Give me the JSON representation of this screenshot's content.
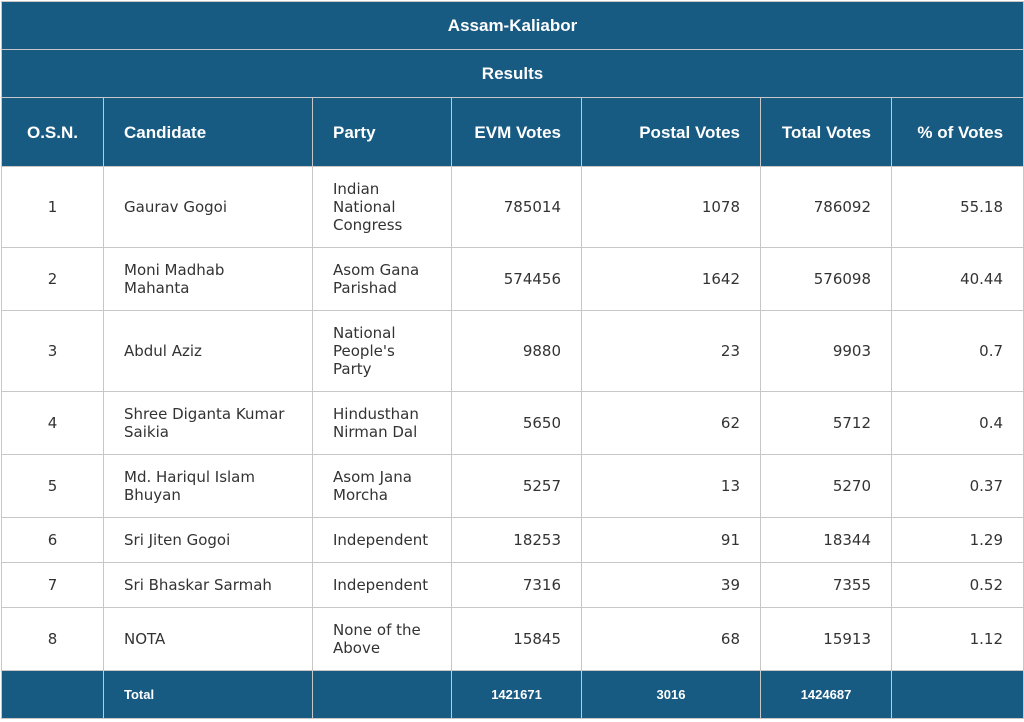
{
  "title": "Assam-Kaliabor",
  "subtitle": "Results",
  "columns": {
    "osn": "O.S.N.",
    "candidate": "Candidate",
    "party": "Party",
    "evm_votes": "EVM Votes",
    "postal_votes": "Postal Votes",
    "total_votes": "Total Votes",
    "percent_votes": "% of Votes"
  },
  "rows": [
    {
      "osn": "1",
      "candidate": "Gaurav Gogoi",
      "party": "Indian National Congress",
      "evm": "785014",
      "postal": "1078",
      "total": "786092",
      "pct": "55.18"
    },
    {
      "osn": "2",
      "candidate": "Moni Madhab Mahanta",
      "party": "Asom Gana Parishad",
      "evm": "574456",
      "postal": "1642",
      "total": "576098",
      "pct": "40.44"
    },
    {
      "osn": "3",
      "candidate": "Abdul Aziz",
      "party": "National People's Party",
      "evm": "9880",
      "postal": "23",
      "total": "9903",
      "pct": "0.7"
    },
    {
      "osn": "4",
      "candidate": "Shree Diganta Kumar Saikia",
      "party": "Hindusthan Nirman Dal",
      "evm": "5650",
      "postal": "62",
      "total": "5712",
      "pct": "0.4"
    },
    {
      "osn": "5",
      "candidate": "Md. Hariqul Islam Bhuyan",
      "party": "Asom Jana Morcha",
      "evm": "5257",
      "postal": "13",
      "total": "5270",
      "pct": "0.37"
    },
    {
      "osn": "6",
      "candidate": "Sri Jiten Gogoi",
      "party": "Independent",
      "evm": "18253",
      "postal": "91",
      "total": "18344",
      "pct": "1.29"
    },
    {
      "osn": "7",
      "candidate": "Sri Bhaskar Sarmah",
      "party": "Independent",
      "evm": "7316",
      "postal": "39",
      "total": "7355",
      "pct": "0.52"
    },
    {
      "osn": "8",
      "candidate": "NOTA",
      "party": "None of the Above",
      "evm": "15845",
      "postal": "68",
      "total": "15913",
      "pct": "1.12"
    }
  ],
  "totals": {
    "label": "Total",
    "evm": "1421671",
    "postal": "3016",
    "total": "1424687"
  },
  "colors": {
    "header_bg": "#175a82",
    "header_text": "#ffffff",
    "border": "#c7c7c7",
    "body_text": "#333333"
  }
}
